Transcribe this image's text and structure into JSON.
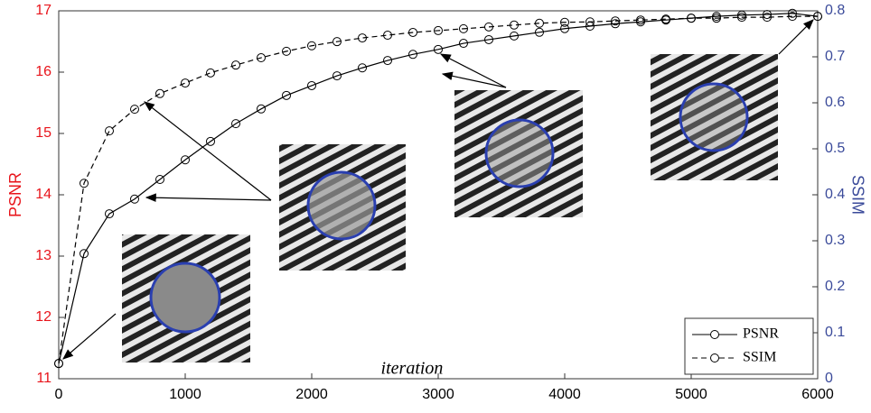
{
  "chart_data": {
    "type": "line",
    "x": [
      0,
      200,
      400,
      600,
      800,
      1000,
      1200,
      1400,
      1600,
      1800,
      2000,
      2200,
      2400,
      2600,
      2800,
      3000,
      3200,
      3400,
      3600,
      3800,
      4000,
      4200,
      4400,
      4600,
      4800,
      5000,
      5200,
      5400,
      5600,
      5800,
      6000
    ],
    "series": [
      {
        "name": "PSNR",
        "color": "#000000",
        "line_style": "solid",
        "marker": "circle",
        "values": [
          11.25,
          13.04,
          13.69,
          13.93,
          14.25,
          14.57,
          14.87,
          15.16,
          15.4,
          15.62,
          15.78,
          15.94,
          16.07,
          16.19,
          16.29,
          16.37,
          16.47,
          16.53,
          16.59,
          16.65,
          16.71,
          16.75,
          16.79,
          16.82,
          16.85,
          16.88,
          16.91,
          16.93,
          16.94,
          16.96,
          16.91
        ]
      },
      {
        "name": "SSIM",
        "color": "#000000",
        "line_style": "dashed",
        "marker": "circle",
        "axis": "y2",
        "values": [
          0.033,
          0.425,
          0.539,
          0.586,
          0.62,
          0.643,
          0.665,
          0.682,
          0.698,
          0.712,
          0.724,
          0.733,
          0.741,
          0.747,
          0.753,
          0.757,
          0.761,
          0.765,
          0.769,
          0.773,
          0.775,
          0.776,
          0.778,
          0.78,
          0.782,
          0.784,
          0.784,
          0.786,
          0.786,
          0.788,
          0.788
        ]
      }
    ],
    "xlabel": "iteration",
    "ylabel": "PSNR",
    "y2label": "SSIM",
    "xlim": [
      0,
      6000
    ],
    "xticks": [
      0,
      1000,
      2000,
      3000,
      4000,
      5000,
      6000
    ],
    "ylim": [
      11,
      17
    ],
    "yticks": [
      11,
      12,
      13,
      14,
      15,
      16,
      17
    ],
    "y2lim": [
      0,
      0.8
    ],
    "y2ticks": [
      0,
      0.1,
      0.2,
      0.3,
      0.4,
      0.5,
      0.6,
      0.7,
      0.8
    ],
    "y_axis_color": "#e8141b",
    "y2_axis_color": "#3a4a9a",
    "grid": false,
    "legend": "lower right"
  }
}
